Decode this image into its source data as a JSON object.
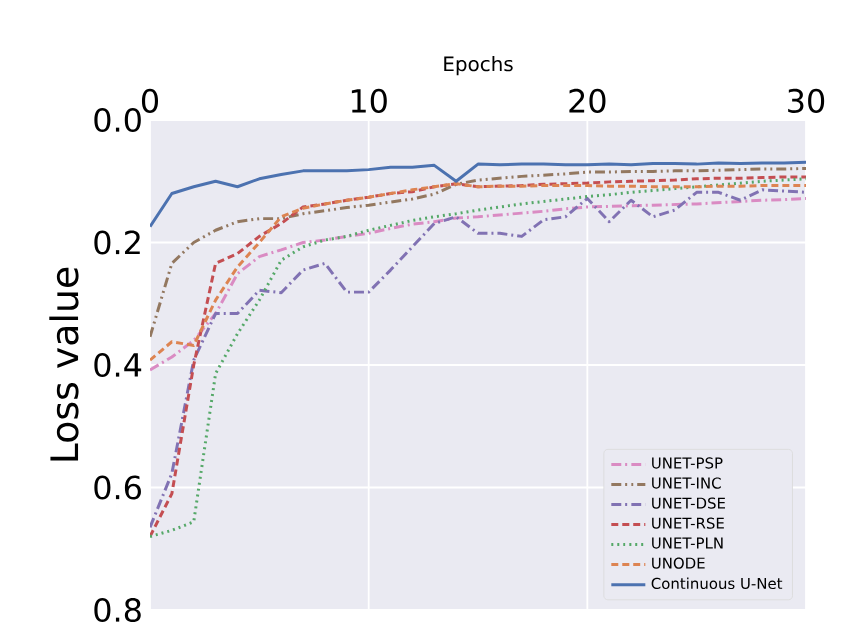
{
  "chart_data": {
    "type": "line",
    "xlabel": "Epochs",
    "ylabel": "Loss value",
    "x": [
      0,
      1,
      2,
      3,
      4,
      5,
      6,
      7,
      8,
      9,
      10,
      11,
      12,
      13,
      14,
      15,
      16,
      17,
      18,
      19,
      20,
      21,
      22,
      23,
      24,
      25,
      26,
      27,
      28,
      29,
      30
    ],
    "xlim": [
      0,
      30
    ],
    "xticks": [
      0,
      10,
      20,
      30
    ],
    "ylim": [
      0.8,
      0.0
    ],
    "yticks": [
      {
        "value": 0.0,
        "label": "0.0"
      },
      0.2,
      0.4,
      0.6,
      0.8
    ],
    "grid": true,
    "legend": "bottom right",
    "series": [
      {
        "name": "UNET-PSP",
        "color": "#da8bc3",
        "line_style": "dashdot",
        "values": [
          0.408,
          0.387,
          0.36,
          0.316,
          0.251,
          0.223,
          0.212,
          0.2,
          0.196,
          0.19,
          0.185,
          0.177,
          0.17,
          0.166,
          0.16,
          0.158,
          0.155,
          0.152,
          0.149,
          0.145,
          0.142,
          0.141,
          0.14,
          0.139,
          0.138,
          0.137,
          0.135,
          0.133,
          0.131,
          0.13,
          0.128
        ]
      },
      {
        "name": "UNET-INC",
        "color": "#937860",
        "line_style": "dashdotdot",
        "values": [
          0.354,
          0.234,
          0.2,
          0.18,
          0.166,
          0.161,
          0.161,
          0.153,
          0.148,
          0.143,
          0.139,
          0.134,
          0.129,
          0.121,
          0.105,
          0.098,
          0.095,
          0.092,
          0.09,
          0.088,
          0.085,
          0.085,
          0.084,
          0.084,
          0.083,
          0.083,
          0.082,
          0.081,
          0.08,
          0.08,
          0.079
        ]
      },
      {
        "name": "UNET-DSE",
        "color": "#8172b3",
        "line_style": "dashdot",
        "values": [
          0.665,
          0.577,
          0.392,
          0.316,
          0.316,
          0.278,
          0.282,
          0.245,
          0.234,
          0.281,
          0.281,
          0.245,
          0.207,
          0.169,
          0.158,
          0.185,
          0.185,
          0.19,
          0.163,
          0.158,
          0.128,
          0.166,
          0.131,
          0.158,
          0.147,
          0.118,
          0.118,
          0.131,
          0.114,
          0.116,
          0.118
        ]
      },
      {
        "name": "UNET-RSE",
        "color": "#c44e52",
        "line_style": "dashed",
        "values": [
          0.68,
          0.61,
          0.4,
          0.234,
          0.218,
          0.19,
          0.169,
          0.142,
          0.137,
          0.131,
          0.126,
          0.12,
          0.117,
          0.109,
          0.104,
          0.109,
          0.108,
          0.107,
          0.105,
          0.104,
          0.103,
          0.101,
          0.1,
          0.099,
          0.098,
          0.096,
          0.095,
          0.095,
          0.094,
          0.093,
          0.093
        ]
      },
      {
        "name": "UNET-PLN",
        "color": "#55a868",
        "line_style": "dotted",
        "values": [
          0.68,
          0.67,
          0.656,
          0.414,
          0.349,
          0.294,
          0.229,
          0.207,
          0.196,
          0.19,
          0.18,
          0.172,
          0.164,
          0.158,
          0.153,
          0.147,
          0.142,
          0.137,
          0.133,
          0.129,
          0.125,
          0.122,
          0.118,
          0.115,
          0.112,
          0.109,
          0.106,
          0.103,
          0.1,
          0.098,
          0.096
        ]
      },
      {
        "name": "UNODE",
        "color": "#dd8452",
        "line_style": "dashed",
        "values": [
          0.392,
          0.362,
          0.368,
          0.294,
          0.24,
          0.2,
          0.158,
          0.144,
          0.137,
          0.131,
          0.126,
          0.12,
          0.114,
          0.109,
          0.104,
          0.109,
          0.108,
          0.108,
          0.107,
          0.107,
          0.107,
          0.108,
          0.108,
          0.109,
          0.109,
          0.109,
          0.108,
          0.108,
          0.107,
          0.107,
          0.107
        ]
      },
      {
        "name": "Continuous U-Net",
        "color": "#4c72b0",
        "line_style": "solid",
        "values": [
          0.174,
          0.12,
          0.109,
          0.1,
          0.109,
          0.096,
          0.089,
          0.083,
          0.083,
          0.083,
          0.081,
          0.077,
          0.077,
          0.074,
          0.1,
          0.072,
          0.073,
          0.072,
          0.072,
          0.073,
          0.073,
          0.072,
          0.073,
          0.071,
          0.071,
          0.072,
          0.07,
          0.071,
          0.07,
          0.07,
          0.069
        ]
      }
    ]
  }
}
